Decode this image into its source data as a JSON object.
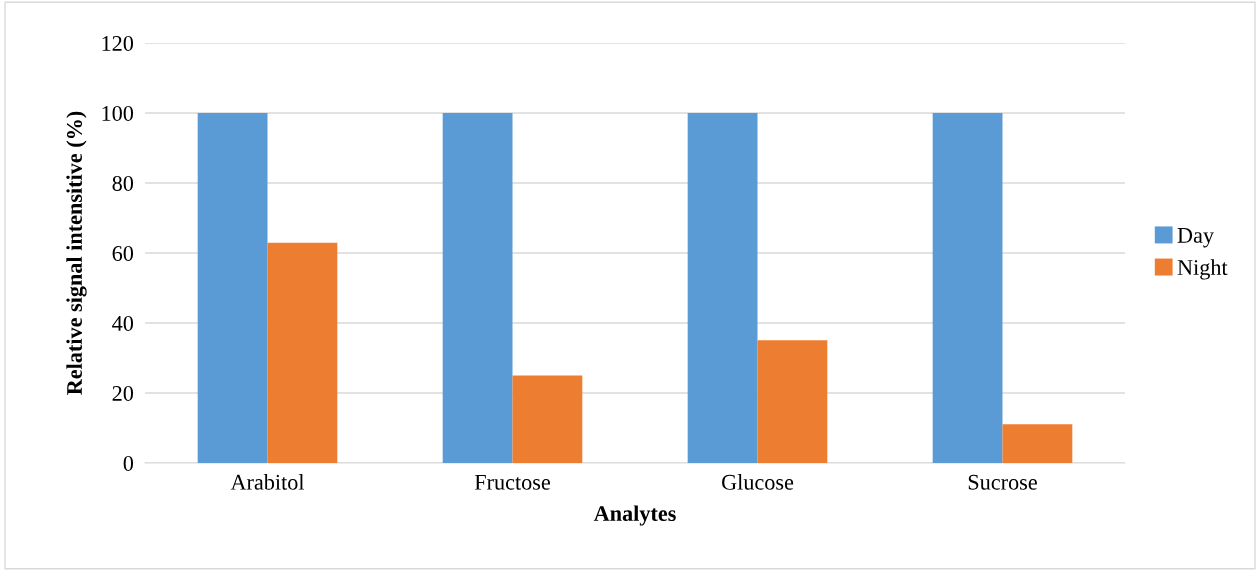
{
  "chart_data": {
    "type": "bar",
    "xlabel": "Analytes",
    "ylabel": "Relative signal intensitive (%)",
    "categories": [
      "Arabitol",
      "Fructose",
      "Glucose",
      "Sucrose"
    ],
    "series": [
      {
        "name": "Day",
        "color": "#5b9bd5",
        "values": [
          100,
          100,
          100,
          100
        ]
      },
      {
        "name": "Night",
        "color": "#ed7d31",
        "values": [
          62.9,
          25,
          35.1,
          11.1
        ]
      }
    ],
    "ylim": [
      0,
      120
    ],
    "yticks": [
      0,
      20,
      40,
      60,
      80,
      100,
      120
    ],
    "grid": "y",
    "legend": "right"
  }
}
